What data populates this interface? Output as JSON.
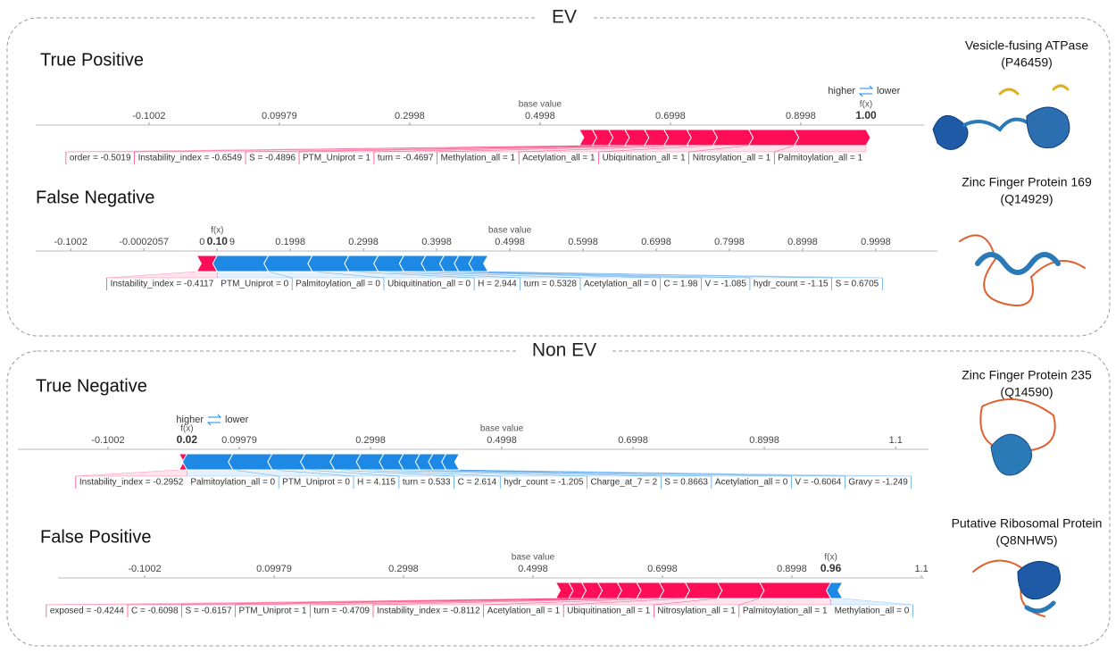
{
  "sections": [
    {
      "label": "EV"
    },
    {
      "label": "Non EV"
    }
  ],
  "chart_data": [
    {
      "type": "force",
      "title": "True Positive",
      "protein": [
        "Vesicle-fusing ATPase",
        "(P46459)"
      ],
      "xlim": [
        -0.274,
        1.089
      ],
      "xticks": [
        -0.1002,
        0.09979,
        0.2998,
        0.4998,
        0.6998,
        0.8998
      ],
      "base_value": 0.4998,
      "base_value_label": "base value",
      "fx_label": "f(x)",
      "output": {
        "value": 1,
        "label": "1.00"
      },
      "legend": true,
      "series": [
        {
          "name": "higher",
          "color": "#ff0d57",
          "labels": [
            "order = -0.5019",
            "Instability_index = -0.6549",
            "S = -0.4896",
            "PTM_Uniprot = 1",
            "turn = -0.4697",
            "Methylation_all = 1",
            "Acetylation_all = 1",
            "Ubiquitination_all = 1",
            "Nitrosylation_all = 1",
            "Palmitoylation_all = 1"
          ],
          "values": [
            0.02,
            0.025,
            0.025,
            0.03,
            0.03,
            0.035,
            0.04,
            0.055,
            0.07,
            0.11
          ]
        },
        {
          "name": "lower",
          "color": "#1e88e5",
          "labels": [],
          "values": []
        }
      ]
    },
    {
      "type": "force",
      "title": "False Negative",
      "protein": [
        "Zinc Finger Protein 169",
        "(Q14929)"
      ],
      "xlim": [
        -0.148,
        1.084
      ],
      "xticks": [
        -0.1002,
        -0.0002057,
        0.09979,
        0.1998,
        0.2998,
        0.3998,
        0.4998,
        0.5998,
        0.6998,
        0.7998,
        0.8998,
        0.9998
      ],
      "base_value": 0.4998,
      "base_value_label": "base value",
      "fx_label": "f(x)",
      "output": {
        "value": 0.1,
        "label": "0.10"
      },
      "legend": false,
      "series": [
        {
          "color": "#ff0d57",
          "labels": [
            "Instability_index = -0.4117"
          ],
          "values": [
            0.028
          ]
        },
        {
          "color": "#1e88e5",
          "labels": [
            "PTM_Uniprot = 0",
            "Palmitoylation_all = 0",
            "Ubiquitination_all = 0",
            "H = 2.944",
            "turn = 0.5328",
            "Acetylation_all = 0",
            "C = 1.98",
            "V = -1.085",
            "hydr_count = -1.15",
            "S = 0.6705"
          ],
          "values": [
            0.07,
            0.06,
            0.05,
            0.04,
            0.035,
            0.03,
            0.025,
            0.02,
            0.02,
            0.02
          ]
        }
      ]
    },
    {
      "type": "force",
      "title": "True Negative",
      "protein": [
        "Zinc Finger Protein 235",
        "(Q14590)"
      ],
      "xlim": [
        -0.2376,
        1.15
      ],
      "xticks": [
        -0.1002,
        0.09979,
        0.2998,
        0.4998,
        0.6998,
        0.8998,
        1.1
      ],
      "base_value": 0.4998,
      "base_value_label": "base value",
      "fx_label": "f(x)",
      "output": 0.02,
      "legend": true,
      "series": [
        {
          "name": "higher",
          "color": "#ff0d57",
          "labels": [
            "Instability_index = -0.2952"
          ],
          "values": [
            0.012
          ]
        },
        {
          "name": "lower",
          "color": "#1e88e5",
          "labels": [
            "Palmitoylation_all = 0",
            "PTM_Uniprot = 0",
            "H = 4.115",
            "turn = 0.533",
            "C = 2.614",
            "hydr_count = -1.205",
            "Charge_at_7 = 2",
            "S = 0.8663",
            "Acetylation_all = 0",
            "V = -0.6064",
            "Gravy = -1.249"
          ],
          "values": [
            0.07,
            0.06,
            0.05,
            0.045,
            0.04,
            0.035,
            0.03,
            0.025,
            0.02,
            0.02,
            0.02
          ]
        }
      ]
    },
    {
      "type": "force",
      "title": "False Positive",
      "protein": [
        "Putative Ribosomal Protein",
        "(Q8NHW5)"
      ],
      "xlim": [
        -0.234,
        1.104
      ],
      "xticks": [
        -0.1002,
        0.09979,
        0.2998,
        0.4998,
        0.6998,
        0.8998,
        1.1
      ],
      "base_value": 0.4998,
      "base_value_label": "base value",
      "fx_label": "f(x)",
      "output": 0.96,
      "legend": false,
      "series": [
        {
          "color": "#ff0d57",
          "labels": [
            "exposed = -0.4244",
            "C = -0.6098",
            "S = -0.6157",
            "PTM_Uniprot = 1",
            "turn = -0.4709",
            "Instability_index = -0.8112",
            "Acetylation_all = 1",
            "Ubiquitination_all = 1",
            "Nitrosylation_all = 1",
            "Palmitoylation_all = 1"
          ],
          "values": [
            0.02,
            0.02,
            0.025,
            0.03,
            0.03,
            0.035,
            0.04,
            0.05,
            0.065,
            0.11
          ]
        },
        {
          "color": "#1e88e5",
          "labels": [
            "Methylation_all = 0"
          ],
          "values": [
            0.018
          ]
        }
      ]
    }
  ]
}
